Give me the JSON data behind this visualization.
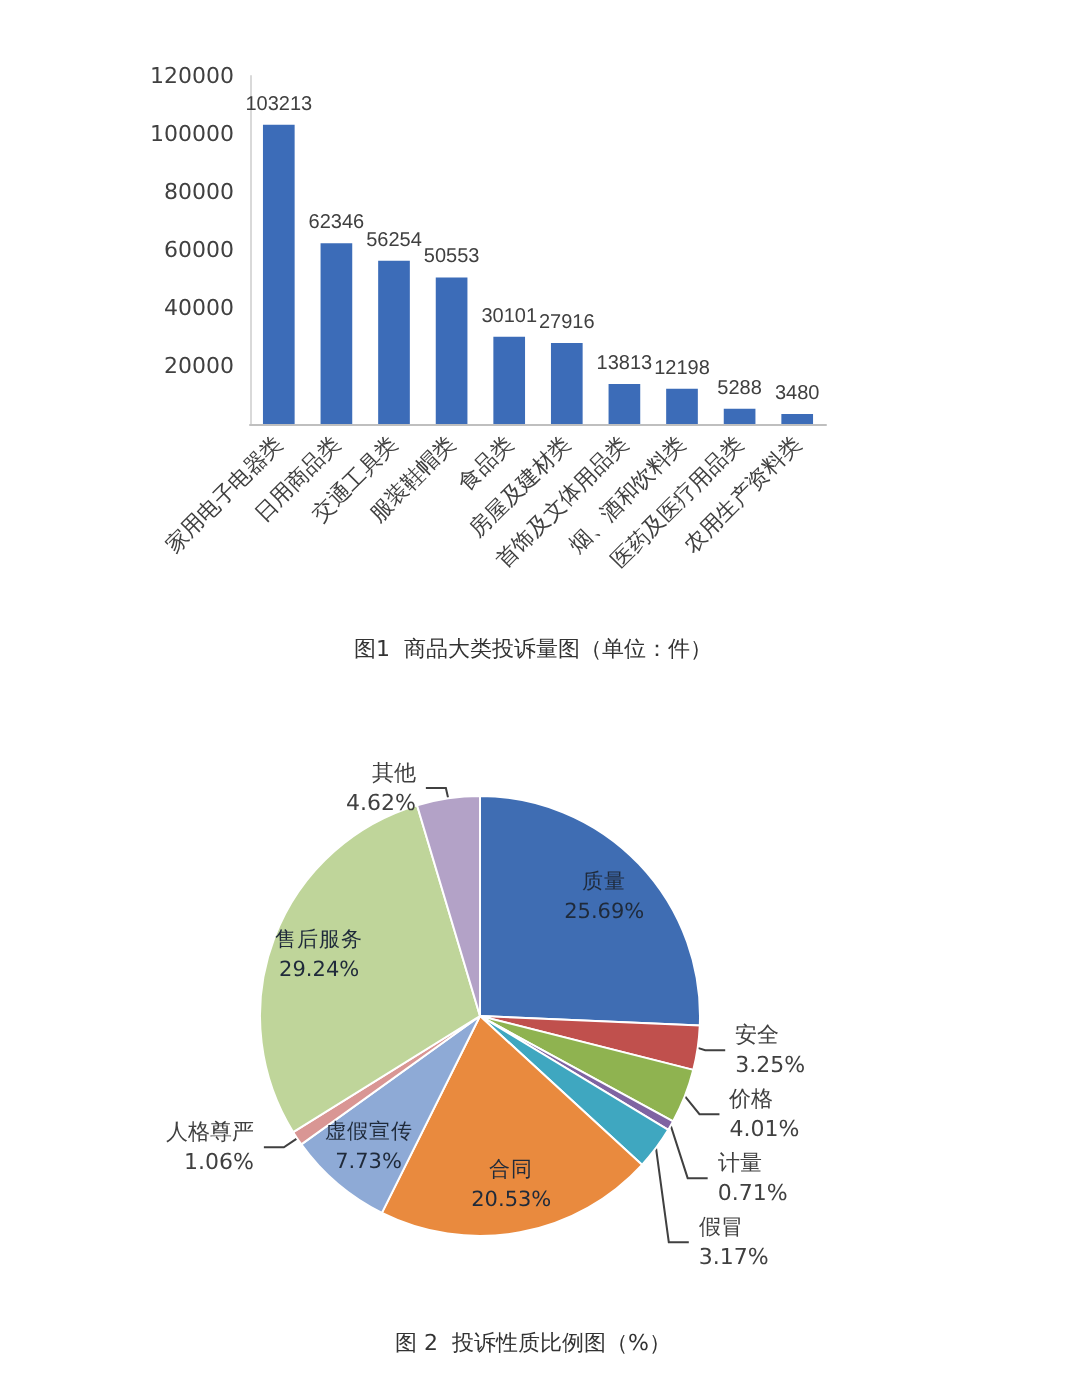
{
  "chart_data": [
    {
      "type": "bar",
      "title": "图1  商品大类投诉量图（单位：件）",
      "categories": [
        "家用电子电器类",
        "日用商品类",
        "交通工具类",
        "服装鞋帽类",
        "食品类",
        "房屋及建材类",
        "首饰及文体用品类",
        "烟、酒和饮料类",
        "医药及医疗用品类",
        "农用生产资料类"
      ],
      "values": [
        103213,
        62346,
        56254,
        50553,
        30101,
        27916,
        13813,
        12198,
        5288,
        3480
      ],
      "color": "#3c6cb8",
      "ylim": [
        0,
        120000
      ],
      "yticks": [
        20000,
        40000,
        60000,
        80000,
        100000,
        120000
      ],
      "grid": false,
      "data_labels": true
    },
    {
      "type": "pie",
      "title": "图 2  投诉性质比例图（%）",
      "categories": [
        "质量",
        "安全",
        "价格",
        "计量",
        "假冒",
        "合同",
        "虚假宣传",
        "人格尊严",
        "售后服务",
        "其他"
      ],
      "values": [
        25.69,
        3.25,
        4.01,
        0.71,
        3.17,
        20.53,
        7.73,
        1.06,
        29.24,
        4.62
      ],
      "colors": [
        "#3f6db3",
        "#c0504d",
        "#8fb350",
        "#7f64a2",
        "#3fa7c0",
        "#e98a3e",
        "#8eaad6",
        "#d99694",
        "#bfd59a",
        "#b3a2c7"
      ],
      "value_labels": [
        "25.69%",
        "3.25%",
        "4.01%",
        "0.71%",
        "3.17%",
        "20.53%",
        "7.73%",
        "1.06%",
        "29.24%",
        "4.62%"
      ]
    }
  ]
}
